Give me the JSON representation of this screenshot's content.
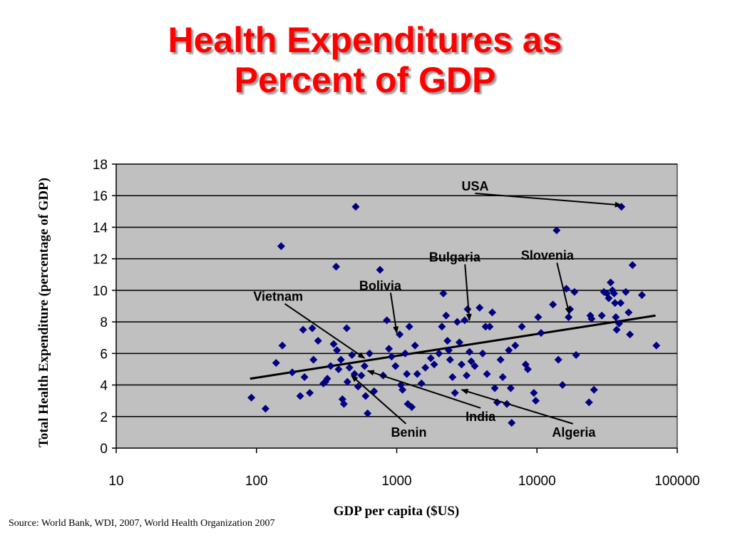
{
  "title": {
    "line1": "Health Expenditures as",
    "line2": "Percent of GDP"
  },
  "source": "Source: World Bank, WDI, 2007, World Health Organization 2007",
  "chart_data": {
    "type": "scatter",
    "xlabel": "GDP per capita ($US)",
    "ylabel": "Total Health Expenditure (percentage of GDP)",
    "x_scale": "log",
    "xlim": [
      10,
      100000
    ],
    "ylim": [
      0,
      18
    ],
    "x_ticks": [
      "10",
      "100",
      "1000",
      "10000",
      "100000"
    ],
    "y_ticks": [
      "0",
      "2",
      "4",
      "6",
      "8",
      "10",
      "12",
      "14",
      "16",
      "18"
    ],
    "grid": "horizontal",
    "plot_background": "#c0c0c0",
    "marker_color": "#000080",
    "trendline": {
      "type": "log",
      "x": [
        90,
        70000
      ],
      "y": [
        4.4,
        8.4
      ],
      "color": "#000000"
    },
    "points": [
      {
        "x": 92,
        "y": 3.2
      },
      {
        "x": 116,
        "y": 2.5
      },
      {
        "x": 138,
        "y": 5.4
      },
      {
        "x": 153,
        "y": 6.5
      },
      {
        "x": 150,
        "y": 12.8
      },
      {
        "x": 180,
        "y": 4.8
      },
      {
        "x": 205,
        "y": 3.3
      },
      {
        "x": 215,
        "y": 7.5
      },
      {
        "x": 220,
        "y": 4.5
      },
      {
        "x": 240,
        "y": 3.5
      },
      {
        "x": 250,
        "y": 7.6
      },
      {
        "x": 255,
        "y": 5.6
      },
      {
        "x": 275,
        "y": 6.8
      },
      {
        "x": 300,
        "y": 4.1
      },
      {
        "x": 310,
        "y": 4.2
      },
      {
        "x": 320,
        "y": 4.4
      },
      {
        "x": 338,
        "y": 5.2
      },
      {
        "x": 355,
        "y": 6.6
      },
      {
        "x": 370,
        "y": 11.5
      },
      {
        "x": 375,
        "y": 6.2
      },
      {
        "x": 385,
        "y": 5.0
      },
      {
        "x": 400,
        "y": 5.6
      },
      {
        "x": 410,
        "y": 3.1
      },
      {
        "x": 420,
        "y": 2.8
      },
      {
        "x": 440,
        "y": 7.6
      },
      {
        "x": 445,
        "y": 4.2
      },
      {
        "x": 460,
        "y": 5.1
      },
      {
        "x": 480,
        "y": 5.9
      },
      {
        "x": 500,
        "y": 4.7
      },
      {
        "x": 510,
        "y": 15.3
      },
      {
        "x": 530,
        "y": 3.9
      },
      {
        "x": 560,
        "y": 4.6
      },
      {
        "x": 590,
        "y": 5.2
      },
      {
        "x": 600,
        "y": 3.3
      },
      {
        "x": 620,
        "y": 2.2
      },
      {
        "x": 640,
        "y": 6.0
      },
      {
        "x": 690,
        "y": 3.6
      },
      {
        "x": 760,
        "y": 11.3
      },
      {
        "x": 800,
        "y": 4.6
      },
      {
        "x": 850,
        "y": 8.1
      },
      {
        "x": 880,
        "y": 6.3
      },
      {
        "x": 920,
        "y": 5.8
      },
      {
        "x": 980,
        "y": 5.2
      },
      {
        "x": 1050,
        "y": 7.2
      },
      {
        "x": 1070,
        "y": 4.0
      },
      {
        "x": 1100,
        "y": 3.7
      },
      {
        "x": 1150,
        "y": 6.0
      },
      {
        "x": 1180,
        "y": 4.7
      },
      {
        "x": 1200,
        "y": 2.8
      },
      {
        "x": 1230,
        "y": 7.7
      },
      {
        "x": 1280,
        "y": 2.6
      },
      {
        "x": 1350,
        "y": 6.5
      },
      {
        "x": 1400,
        "y": 4.7
      },
      {
        "x": 1500,
        "y": 4.1
      },
      {
        "x": 1600,
        "y": 5.1
      },
      {
        "x": 1750,
        "y": 5.7
      },
      {
        "x": 1850,
        "y": 5.3
      },
      {
        "x": 2000,
        "y": 6.0
      },
      {
        "x": 2100,
        "y": 7.7
      },
      {
        "x": 2150,
        "y": 9.8
      },
      {
        "x": 2250,
        "y": 8.4
      },
      {
        "x": 2300,
        "y": 6.8
      },
      {
        "x": 2350,
        "y": 6.2
      },
      {
        "x": 2400,
        "y": 5.6
      },
      {
        "x": 2500,
        "y": 4.5
      },
      {
        "x": 2600,
        "y": 3.5
      },
      {
        "x": 2700,
        "y": 8.0
      },
      {
        "x": 2800,
        "y": 6.7
      },
      {
        "x": 2900,
        "y": 5.3
      },
      {
        "x": 3050,
        "y": 8.1
      },
      {
        "x": 3150,
        "y": 4.6
      },
      {
        "x": 3200,
        "y": 8.8
      },
      {
        "x": 3300,
        "y": 6.1
      },
      {
        "x": 3400,
        "y": 5.5
      },
      {
        "x": 3600,
        "y": 5.2
      },
      {
        "x": 3900,
        "y": 8.9
      },
      {
        "x": 4100,
        "y": 6.0
      },
      {
        "x": 4300,
        "y": 7.7
      },
      {
        "x": 4400,
        "y": 4.7
      },
      {
        "x": 4600,
        "y": 7.7
      },
      {
        "x": 4800,
        "y": 8.6
      },
      {
        "x": 5000,
        "y": 3.8
      },
      {
        "x": 5200,
        "y": 2.9
      },
      {
        "x": 5500,
        "y": 5.6
      },
      {
        "x": 5700,
        "y": 4.5
      },
      {
        "x": 6100,
        "y": 2.8
      },
      {
        "x": 6300,
        "y": 6.2
      },
      {
        "x": 6500,
        "y": 3.8
      },
      {
        "x": 6600,
        "y": 1.6
      },
      {
        "x": 7000,
        "y": 6.5
      },
      {
        "x": 7800,
        "y": 7.7
      },
      {
        "x": 8300,
        "y": 5.3
      },
      {
        "x": 8600,
        "y": 5.0
      },
      {
        "x": 9500,
        "y": 3.5
      },
      {
        "x": 9800,
        "y": 3.0
      },
      {
        "x": 10200,
        "y": 8.3
      },
      {
        "x": 10700,
        "y": 7.3
      },
      {
        "x": 13000,
        "y": 9.1
      },
      {
        "x": 13800,
        "y": 13.8
      },
      {
        "x": 14200,
        "y": 5.6
      },
      {
        "x": 15200,
        "y": 4.0
      },
      {
        "x": 16200,
        "y": 10.1
      },
      {
        "x": 16800,
        "y": 8.3
      },
      {
        "x": 17200,
        "y": 8.8
      },
      {
        "x": 18500,
        "y": 9.9
      },
      {
        "x": 19000,
        "y": 5.9
      },
      {
        "x": 23500,
        "y": 2.9
      },
      {
        "x": 24000,
        "y": 8.4
      },
      {
        "x": 24500,
        "y": 8.2
      },
      {
        "x": 25500,
        "y": 3.7
      },
      {
        "x": 29000,
        "y": 8.4
      },
      {
        "x": 30000,
        "y": 9.9
      },
      {
        "x": 31500,
        "y": 9.8
      },
      {
        "x": 32500,
        "y": 9.5
      },
      {
        "x": 33500,
        "y": 10.5
      },
      {
        "x": 34500,
        "y": 10.0
      },
      {
        "x": 35500,
        "y": 9.8
      },
      {
        "x": 36000,
        "y": 9.2
      },
      {
        "x": 36500,
        "y": 8.3
      },
      {
        "x": 37000,
        "y": 7.5
      },
      {
        "x": 38500,
        "y": 7.9
      },
      {
        "x": 39500,
        "y": 9.2
      },
      {
        "x": 40000,
        "y": 15.3
      },
      {
        "x": 43000,
        "y": 9.9
      },
      {
        "x": 45000,
        "y": 8.6
      },
      {
        "x": 46000,
        "y": 7.2
      },
      {
        "x": 48000,
        "y": 11.6
      },
      {
        "x": 56000,
        "y": 9.7
      },
      {
        "x": 71000,
        "y": 6.5
      }
    ],
    "annotations": [
      {
        "label": "USA",
        "text_x": 2900,
        "text_y": 16.6,
        "point_x": 40000,
        "point_y": 15.4
      },
      {
        "label": "Bulgaria",
        "text_x": 1700,
        "text_y": 12.1,
        "point_x": 3300,
        "point_y": 8.1
      },
      {
        "label": "Slovenia",
        "text_x": 7700,
        "text_y": 12.2,
        "point_x": 17000,
        "point_y": 8.5
      },
      {
        "label": "Bolivia",
        "text_x": 540,
        "text_y": 10.3,
        "point_x": 1000,
        "point_y": 7.3
      },
      {
        "label": "Vietnam",
        "text_x": 95,
        "text_y": 9.6,
        "point_x": 590,
        "point_y": 5.7
      },
      {
        "label": "India",
        "text_x": 3100,
        "text_y": 2.0,
        "point_x": 620,
        "point_y": 4.9
      },
      {
        "label": "Benin",
        "text_x": 910,
        "text_y": 1.0,
        "point_x": 475,
        "point_y": 4.6
      },
      {
        "label": "Algeria",
        "text_x": 12800,
        "text_y": 1.0,
        "point_x": 2900,
        "point_y": 3.7
      }
    ]
  }
}
